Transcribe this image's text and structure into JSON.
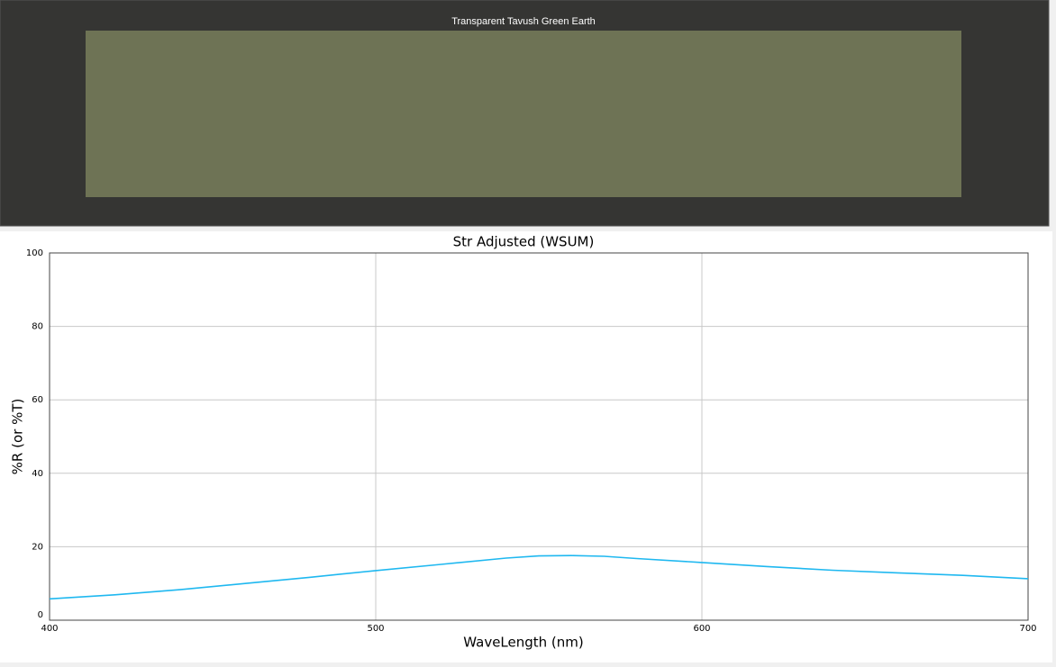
{
  "swatch": {
    "title": "Transparent Tavush Green Earth",
    "color": "#6e7355"
  },
  "chart_data": {
    "type": "line",
    "title": "Str Adjusted (WSUM)",
    "x_label": "WaveLength (nm)",
    "y_label": "%R (or %T)",
    "x": [
      400,
      420,
      440,
      460,
      480,
      500,
      520,
      540,
      550,
      560,
      570,
      580,
      600,
      620,
      640,
      660,
      680,
      700
    ],
    "values": [
      5.8,
      6.9,
      8.3,
      10.0,
      11.7,
      13.5,
      15.2,
      16.9,
      17.5,
      17.6,
      17.4,
      16.8,
      15.7,
      14.6,
      13.6,
      12.9,
      12.2,
      11.3
    ],
    "color": "#1fb8f0",
    "xlim": [
      400,
      700
    ],
    "xticks": [
      400,
      500,
      600,
      700
    ],
    "ylim": [
      0,
      100
    ],
    "yticks": [
      0,
      20,
      40,
      60,
      80,
      100
    ],
    "grid": true
  }
}
